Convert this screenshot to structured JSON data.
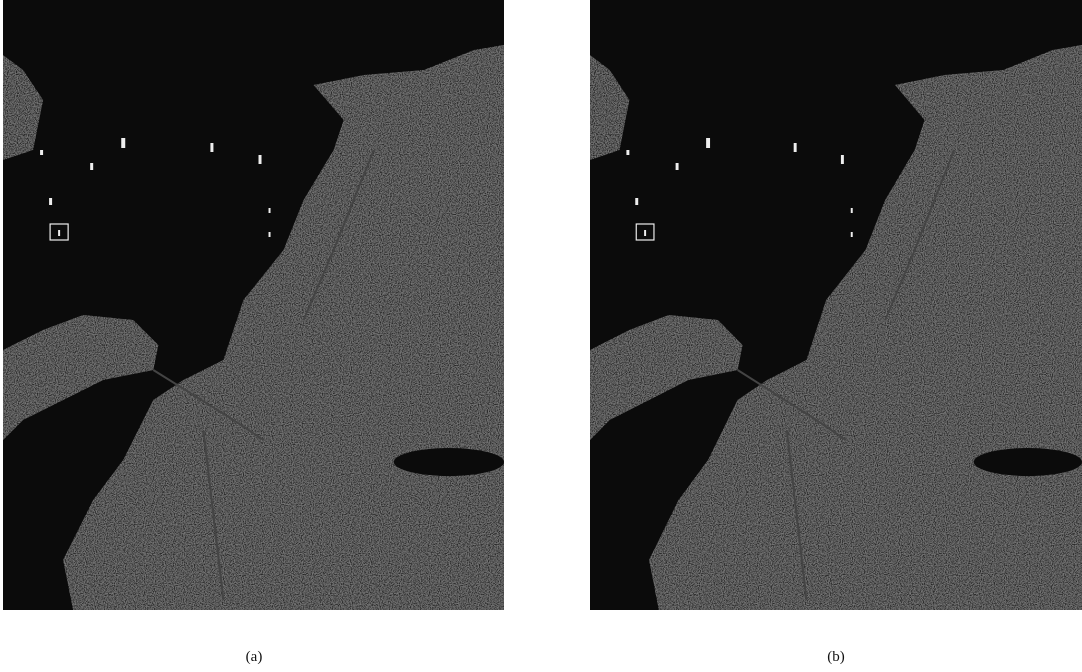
{
  "figure": {
    "panels": [
      {
        "caption": "(a)"
      },
      {
        "caption": "(b)"
      }
    ]
  }
}
